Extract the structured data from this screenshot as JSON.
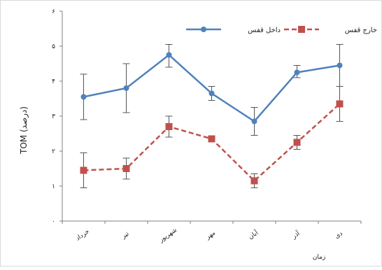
{
  "chart_data": {
    "type": "line",
    "title": "",
    "ylabel": "TOM (درصد)",
    "xlabel": "زمان",
    "ylim": [
      0,
      6
    ],
    "y_ticks": [
      "۰",
      "۱",
      "۲",
      "۳",
      "۴",
      "۵",
      "۶"
    ],
    "categories": [
      "خرداد",
      "تیر",
      "شهریور",
      "مهر",
      "آبان",
      "آذر",
      "دی"
    ],
    "legend_position": "top-right",
    "grid": false,
    "series": [
      {
        "name": "داخل قفس",
        "color": "#4f81bd",
        "line_style": "solid",
        "marker": "diamond",
        "values": [
          3.55,
          3.8,
          4.75,
          3.65,
          2.85,
          4.25,
          4.45
        ],
        "error_low": [
          2.9,
          3.1,
          4.4,
          3.45,
          2.45,
          4.1,
          3.85
        ],
        "error_high": [
          4.2,
          4.5,
          5.05,
          3.85,
          3.25,
          4.45,
          5.05
        ]
      },
      {
        "name": "خارج قفس",
        "color": "#c0504d",
        "line_style": "dashed",
        "marker": "square",
        "values": [
          1.45,
          1.5,
          2.7,
          2.35,
          1.15,
          2.25,
          3.35
        ],
        "error_low": [
          0.95,
          1.2,
          2.4,
          2.35,
          0.95,
          2.05,
          2.85
        ],
        "error_high": [
          1.95,
          1.8,
          3.0,
          2.35,
          1.35,
          2.45,
          3.85
        ]
      }
    ]
  }
}
